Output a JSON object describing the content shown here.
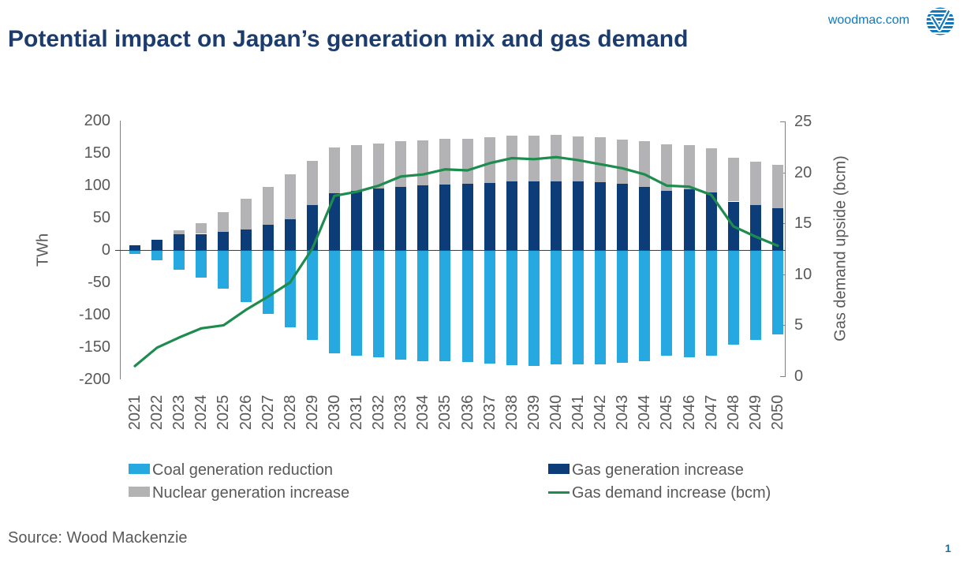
{
  "header": {
    "title": "Potential impact on Japan’s generation mix and gas demand",
    "site": "woodmac.com"
  },
  "chart_data": {
    "type": "bar+line",
    "title": "Potential impact on Japan’s generation mix and gas demand",
    "categories": [
      "2021",
      "2022",
      "2023",
      "2024",
      "2025",
      "2026",
      "2027",
      "2028",
      "2029",
      "2030",
      "2031",
      "2032",
      "2033",
      "2034",
      "2035",
      "2036",
      "2037",
      "2038",
      "2039",
      "2040",
      "2041",
      "2042",
      "2043",
      "2044",
      "2045",
      "2046",
      "2047",
      "2048",
      "2049",
      "2050"
    ],
    "series": [
      {
        "name": "Coal generation reduction",
        "type": "bar",
        "axis": "left",
        "color": "#25a9e0",
        "values": [
          -6,
          -16,
          -30,
          -43,
          -60,
          -81,
          -99,
          -119,
          -139,
          -160,
          -164,
          -166,
          -170,
          -172,
          -172,
          -173,
          -176,
          -178,
          -179,
          -177,
          -177,
          -177,
          -174,
          -172,
          -164,
          -166,
          -164,
          -146,
          -139,
          -131
        ]
      },
      {
        "name": "Gas generation increase",
        "type": "bar",
        "axis": "left",
        "color": "#0d3d78",
        "values": [
          7,
          16,
          24,
          25,
          28,
          32,
          39,
          48,
          69,
          88,
          92,
          95,
          98,
          100,
          101,
          102,
          104,
          106,
          106,
          106,
          106,
          105,
          103,
          98,
          92,
          94,
          89,
          75,
          69,
          65
        ]
      },
      {
        "name": "Nuclear generation increase",
        "type": "bar",
        "axis": "left",
        "color": "#b3b3b5",
        "values": [
          0,
          0,
          7,
          17,
          31,
          47,
          59,
          69,
          69,
          70,
          70,
          70,
          70,
          70,
          71,
          70,
          71,
          71,
          71,
          72,
          70,
          69,
          68,
          70,
          71,
          68,
          68,
          68,
          67,
          67
        ]
      },
      {
        "name": "Gas demand increase (bcm)",
        "type": "line",
        "axis": "right",
        "color": "#1e8c4e",
        "values": [
          1.0,
          2.8,
          3.8,
          4.7,
          5.0,
          6.5,
          7.8,
          9.2,
          12.5,
          17.7,
          18.1,
          18.7,
          19.6,
          19.8,
          20.3,
          20.2,
          20.9,
          21.4,
          21.3,
          21.5,
          21.2,
          20.8,
          20.4,
          19.8,
          18.7,
          18.6,
          17.8,
          14.7,
          13.7,
          12.8
        ]
      }
    ],
    "left_axis": {
      "label": "TWh",
      "min": -200,
      "max": 200,
      "ticks": [
        "200",
        "150",
        "100",
        "50",
        "0",
        "-50",
        "-100",
        "-150",
        "-200"
      ]
    },
    "right_axis": {
      "label": "Gas demand upside (bcm)",
      "min": 0,
      "max": 25,
      "ticks": [
        "25",
        "20",
        "15",
        "10",
        "5",
        "0"
      ]
    },
    "legend_position": "bottom",
    "grid": "zero-line-only",
    "stacking": "gas and nuclear stacked above zero, coal below zero"
  },
  "footer": {
    "source": "Source: Wood Mackenzie",
    "page_number": "1"
  }
}
